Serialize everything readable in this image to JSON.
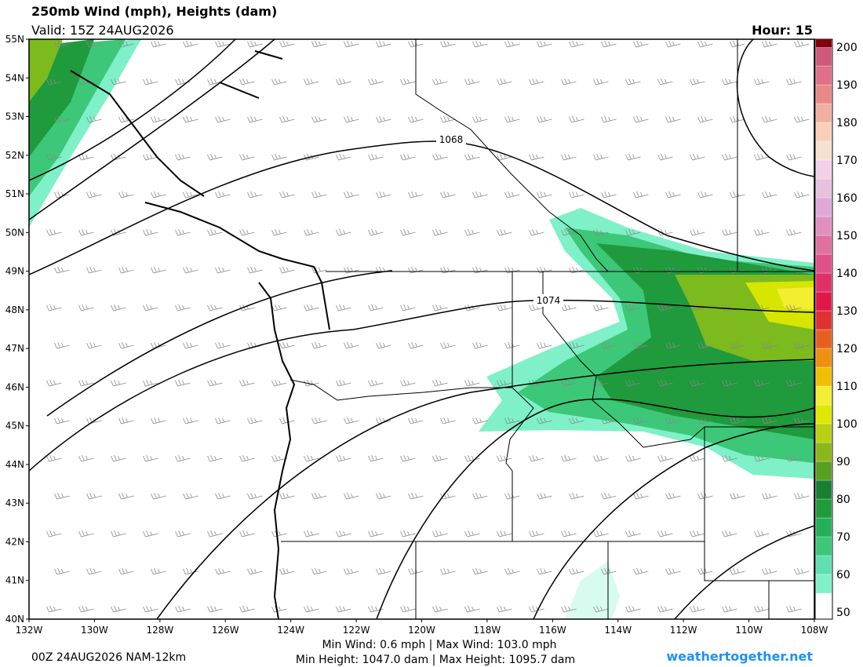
{
  "header": {
    "title": "250mb Wind (mph), Heights (dam)",
    "valid": "Valid: 15Z 24AUG2026",
    "hour": "Hour: 15"
  },
  "map": {
    "lat_labels": [
      "55N",
      "54N",
      "53N",
      "52N",
      "51N",
      "50N",
      "49N",
      "48N",
      "47N",
      "46N",
      "45N",
      "44N",
      "43N",
      "42N",
      "41N",
      "40N"
    ],
    "lon_labels": [
      "132W",
      "130W",
      "128W",
      "126W",
      "124W",
      "122W",
      "120W",
      "118W",
      "116W",
      "114W",
      "112W",
      "110W",
      "108W"
    ],
    "contour_labels": [
      "1068",
      "1074"
    ]
  },
  "colorbar": {
    "ticks": [
      200,
      190,
      180,
      170,
      160,
      150,
      140,
      130,
      120,
      110,
      100,
      90,
      80,
      70,
      60,
      50
    ]
  },
  "footer": {
    "run": "00Z 24AUG2026 NAM-12km",
    "wind": "Min Wind:   0.6 mph | Max Wind: 103.0 mph",
    "height": "Min Height: 1047.0 dam | Max Height: 1095.7 dam",
    "site": "weathertogether.net"
  }
}
